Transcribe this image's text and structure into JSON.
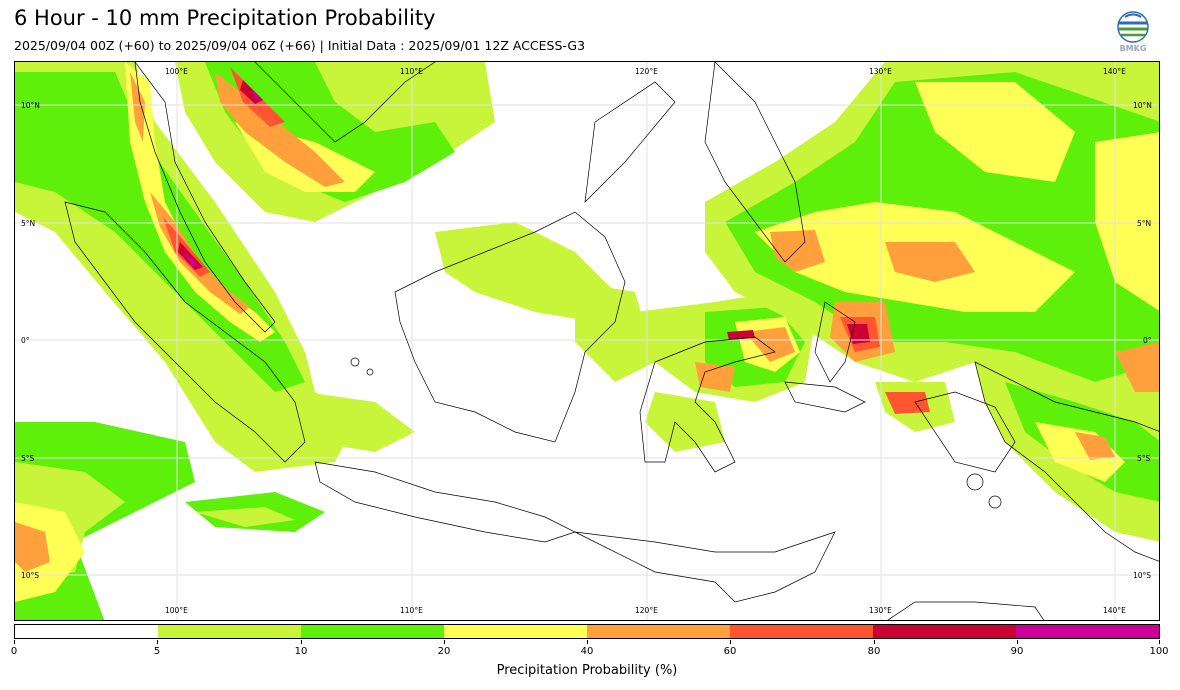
{
  "header": {
    "title": "6 Hour - 10 mm Precipitation Probability",
    "subtitle": "2025/09/04 00Z (+60) to 2025/09/04 06Z (+66) | Initial Data : 2025/09/01 12Z ACCESS-G3",
    "logo_text": "BMKG"
  },
  "map": {
    "lon_labels_top": [
      "100°E",
      "110°E",
      "120°E",
      "130°E",
      "140°E"
    ],
    "lon_labels_bottom": [
      "100°E",
      "110°E",
      "120°E",
      "130°E",
      "140°E"
    ],
    "lat_labels_left": [
      "10°N",
      "5°N",
      "0°",
      "5°S",
      "10°S"
    ],
    "lat_labels_right": [
      "10°N",
      "5°N",
      "0°",
      "5°S",
      "10°S"
    ],
    "lon_values": [
      100,
      110,
      120,
      130,
      140
    ],
    "lat_values": [
      10,
      5,
      0,
      -5,
      -10
    ],
    "extent": {
      "lon_min": 93.1,
      "lon_max": 141.9,
      "lat_min": -12,
      "lat_max": 11.8
    }
  },
  "colorbar": {
    "label": "Precipitation Probability (%)",
    "ticks": [
      "0",
      "5",
      "10",
      "20",
      "40",
      "60",
      "80",
      "90",
      "100"
    ],
    "colors": [
      "#ffffff",
      "#c8f53a",
      "#5ef00a",
      "#ffff55",
      "#ffa03c",
      "#ff5530",
      "#cc0035",
      "#cc0099"
    ]
  },
  "legend_colors": {
    "5-10": "#c8f53a",
    "10-20": "#5ef00a",
    "20-40": "#ffff55",
    "40-60": "#ffa03c",
    "60-80": "#ff5530",
    "80-90": "#cc0035",
    "90-100": "#cc0099"
  }
}
